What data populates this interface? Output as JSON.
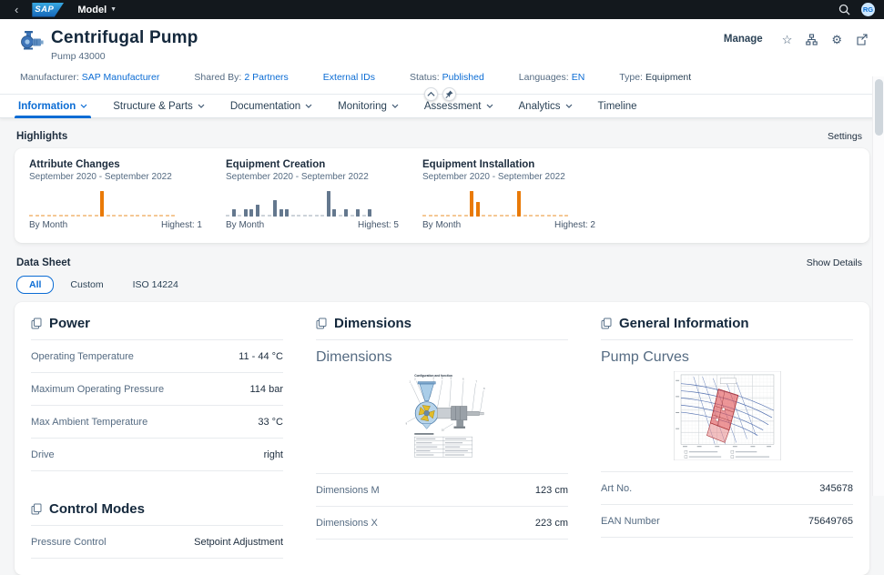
{
  "topbar": {
    "back_glyph": "‹",
    "logo_text": "SAP",
    "product": "Model",
    "avatar_initials": "RG"
  },
  "header": {
    "title": "Centrifugal Pump",
    "subtitle": "Pump 43000",
    "manage_label": "Manage",
    "star_glyph": "☆",
    "gear_glyph": "⚙"
  },
  "meta": {
    "items": [
      {
        "label": "Manufacturer:",
        "value": "SAP Manufacturer"
      },
      {
        "label": "Shared By:",
        "value": "2 Partners"
      },
      {
        "label": "",
        "value": "External IDs"
      },
      {
        "label": "Status:",
        "value": "Published"
      },
      {
        "label": "Languages:",
        "value": "EN"
      },
      {
        "label": "Type:",
        "value": "Equipment"
      }
    ]
  },
  "tabs": {
    "items": [
      {
        "label": "Information"
      },
      {
        "label": "Structure & Parts"
      },
      {
        "label": "Documentation"
      },
      {
        "label": "Monitoring"
      },
      {
        "label": "Assessment"
      },
      {
        "label": "Analytics"
      },
      {
        "label": "Timeline"
      }
    ]
  },
  "highlights": {
    "section_title": "Highlights",
    "settings_label": "Settings"
  },
  "chart_data": [
    {
      "type": "bar",
      "title": "Attribute Changes",
      "subtitle": "September 2020 - September 2022",
      "footer_left": "By Month",
      "footer_right": "Highest: 1",
      "categories": [
        "2020-09",
        "2020-10",
        "2020-11",
        "2020-12",
        "2021-01",
        "2021-02",
        "2021-03",
        "2021-04",
        "2021-05",
        "2021-06",
        "2021-07",
        "2021-08",
        "2021-09",
        "2021-10",
        "2021-11",
        "2021-12",
        "2022-01",
        "2022-02",
        "2022-03",
        "2022-04",
        "2022-05",
        "2022-06",
        "2022-07",
        "2022-08",
        "2022-09"
      ],
      "values": [
        0,
        0,
        0,
        0,
        0,
        0,
        0,
        0,
        0,
        0,
        0,
        0,
        1,
        0,
        0,
        0,
        0,
        0,
        0,
        0,
        0,
        0,
        0,
        0,
        0
      ],
      "ylim": [
        0,
        1
      ],
      "bar_color": "#e97a08",
      "zero_color": "#f4c793"
    },
    {
      "type": "bar",
      "title": "Equipment Creation",
      "subtitle": "September 2020 - September 2022",
      "footer_left": "By Month",
      "footer_right": "Highest: 5",
      "categories": [
        "2020-09",
        "2020-10",
        "2020-11",
        "2020-12",
        "2021-01",
        "2021-02",
        "2021-03",
        "2021-04",
        "2021-05",
        "2021-06",
        "2021-07",
        "2021-08",
        "2021-09",
        "2021-10",
        "2021-11",
        "2021-12",
        "2022-01",
        "2022-02",
        "2022-03",
        "2022-04",
        "2022-05",
        "2022-06",
        "2022-07",
        "2022-08",
        "2022-09"
      ],
      "values": [
        0,
        1,
        0,
        1,
        1,
        2,
        0,
        0,
        3,
        1,
        1,
        0,
        0,
        0,
        0,
        0,
        0,
        5,
        1,
        0,
        1,
        0,
        1,
        0,
        1
      ],
      "ylim": [
        0,
        5
      ],
      "bar_color": "#64788e",
      "zero_color": "#ccd2d9"
    },
    {
      "type": "bar",
      "title": "Equipment Installation",
      "subtitle": "September 2020 - September 2022",
      "footer_left": "By Month",
      "footer_right": "Highest: 2",
      "categories": [
        "2020-09",
        "2020-10",
        "2020-11",
        "2020-12",
        "2021-01",
        "2021-02",
        "2021-03",
        "2021-04",
        "2021-05",
        "2021-06",
        "2021-07",
        "2021-08",
        "2021-09",
        "2021-10",
        "2021-11",
        "2021-12",
        "2022-01",
        "2022-02",
        "2022-03",
        "2022-04",
        "2022-05",
        "2022-06",
        "2022-07",
        "2022-08",
        "2022-09"
      ],
      "values": [
        0,
        0,
        0,
        0,
        0,
        0,
        0,
        0,
        2,
        1,
        0,
        0,
        0,
        0,
        0,
        0,
        2,
        0,
        0,
        0,
        0,
        0,
        0,
        0,
        0
      ],
      "ylim": [
        0,
        2
      ],
      "bar_color": "#e97a08",
      "zero_color": "#f4c793"
    }
  ],
  "datasheet": {
    "section_title": "Data Sheet",
    "show_details_label": "Show Details",
    "filter_tabs": [
      "All",
      "Custom",
      "ISO 14224"
    ],
    "groups": {
      "power": {
        "title": "Power",
        "rows": [
          [
            "Operating Temperature",
            "11 - 44 °C"
          ],
          [
            "Maximum Operating Pressure",
            "114 bar"
          ],
          [
            "Max Ambient Temperature",
            "33 °C"
          ],
          [
            "Drive",
            "right"
          ]
        ]
      },
      "control_modes": {
        "title": "Control Modes",
        "rows": [
          [
            "Pressure Control",
            "Setpoint Adjustment"
          ]
        ]
      },
      "dimensions": {
        "title": "Dimensions",
        "image_label": "Dimensions",
        "diagram_caption": "Configuration and function",
        "rows": [
          [
            "Dimensions M",
            "123 cm"
          ],
          [
            "Dimensions X",
            "223 cm"
          ]
        ]
      },
      "general_information": {
        "title": "General Information",
        "image_label": "Pump Curves",
        "rows": [
          [
            "Art No.",
            "345678"
          ],
          [
            "EAN Number",
            "75649765"
          ]
        ]
      }
    }
  }
}
